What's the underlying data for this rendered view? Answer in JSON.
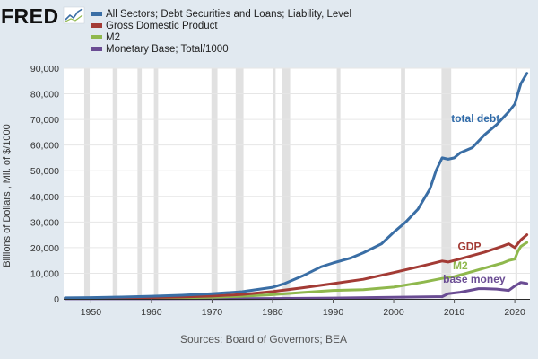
{
  "brand": {
    "logo": "FRED",
    "logo_icon": "trend-line-icon"
  },
  "source": "Sources: Board of Governors; BEA",
  "chart_data": {
    "type": "line",
    "title": "",
    "xlabel": "",
    "ylabel": "Billions of Dollars , Mil. of $/1000",
    "xlim": [
      1945.5,
      2022.5
    ],
    "ylim": [
      0,
      90000
    ],
    "x_ticks": [
      1950,
      1960,
      1970,
      1980,
      1990,
      2000,
      2010,
      2020
    ],
    "y_ticks": [
      0,
      10000,
      20000,
      30000,
      40000,
      50000,
      60000,
      70000,
      80000,
      90000
    ],
    "x_tick_labels": [
      "1950",
      "1960",
      "1970",
      "1980",
      "1990",
      "2000",
      "2010",
      "2020"
    ],
    "y_tick_labels": [
      "0",
      "10,000",
      "20,000",
      "30,000",
      "40,000",
      "50,000",
      "60,000",
      "70,000",
      "80,000",
      "90,000"
    ],
    "grid": true,
    "legend_position": "top",
    "recessions": [
      [
        1948.9,
        1949.8
      ],
      [
        1953.6,
        1954.4
      ],
      [
        1957.7,
        1958.4
      ],
      [
        1960.4,
        1961.1
      ],
      [
        1969.9,
        1970.9
      ],
      [
        1973.9,
        1975.2
      ],
      [
        1980.0,
        1980.5
      ],
      [
        1981.5,
        1982.9
      ],
      [
        1990.6,
        1991.2
      ],
      [
        2001.2,
        2001.9
      ],
      [
        2007.9,
        2009.5
      ],
      [
        2020.1,
        2020.4
      ]
    ],
    "series": [
      {
        "name": "All Sectors; Debt Securities and Loans; Liability, Level",
        "color": "#3a6ea5",
        "x": [
          1945.75,
          1950,
          1955,
          1960,
          1965,
          1970,
          1975,
          1980,
          1982,
          1985,
          1988,
          1990,
          1993,
          1995,
          1998,
          2000,
          2002,
          2004,
          2006,
          2007,
          2008,
          2009,
          2010,
          2011,
          2013,
          2015,
          2017,
          2019,
          2020,
          2021,
          2022
        ],
        "y": [
          400,
          500,
          700,
          1000,
          1400,
          2000,
          2800,
          4500,
          6000,
          9000,
          12500,
          14000,
          16000,
          18000,
          21500,
          26000,
          30000,
          35000,
          43000,
          50000,
          55000,
          54500,
          55000,
          57000,
          59000,
          64000,
          68000,
          73000,
          76000,
          84000,
          88000
        ]
      },
      {
        "name": "Gross Domestic Product",
        "color": "#a33b35",
        "x": [
          1945.75,
          1950,
          1955,
          1960,
          1965,
          1970,
          1975,
          1980,
          1985,
          1990,
          1995,
          2000,
          2005,
          2008,
          2009,
          2010,
          2012,
          2015,
          2018,
          2019,
          2020,
          2020.5,
          2021,
          2022
        ],
        "y": [
          230,
          300,
          430,
          540,
          740,
          1070,
          1700,
          2850,
          4350,
          5960,
          7640,
          10250,
          13040,
          14770,
          14400,
          15000,
          16250,
          18240,
          20600,
          21500,
          20000,
          21500,
          23000,
          25000
        ]
      },
      {
        "name": "M2",
        "color": "#8fb84d",
        "x": [
          1945.75,
          1950,
          1955,
          1960,
          1965,
          1970,
          1975,
          1980,
          1985,
          1990,
          1995,
          2000,
          2005,
          2008,
          2010,
          2012,
          2015,
          2018,
          2019,
          2020,
          2020.5,
          2021,
          2022
        ],
        "y": [
          200,
          280,
          330,
          400,
          450,
          620,
          1000,
          1600,
          2500,
          3300,
          3600,
          4600,
          6600,
          8000,
          8700,
          10000,
          12000,
          14000,
          15000,
          15500,
          18500,
          20500,
          22000
        ]
      },
      {
        "name": "Monetary Base; Total/1000",
        "color": "#6a4c93",
        "x": [
          1945.75,
          1960,
          1980,
          1990,
          2000,
          2007,
          2008,
          2009,
          2011,
          2013,
          2014,
          2015,
          2017,
          2019,
          2020,
          2021,
          2022
        ],
        "y": [
          30,
          50,
          150,
          300,
          600,
          850,
          850,
          2000,
          2600,
          3500,
          4000,
          4000,
          3800,
          3300,
          5000,
          6400,
          6000
        ]
      }
    ],
    "annotations": [
      {
        "text": "total debt",
        "x": 2013.5,
        "y": 69000,
        "color": "#2f6aa8"
      },
      {
        "text": "GDP",
        "x": 2012.5,
        "y": 19000,
        "color": "#a33b35"
      },
      {
        "text": "M2",
        "x": 2011.0,
        "y": 11500,
        "color": "#8fb84d"
      },
      {
        "text": "base money",
        "x": 2013.3,
        "y": 6300,
        "color": "#6a4c93"
      }
    ]
  }
}
